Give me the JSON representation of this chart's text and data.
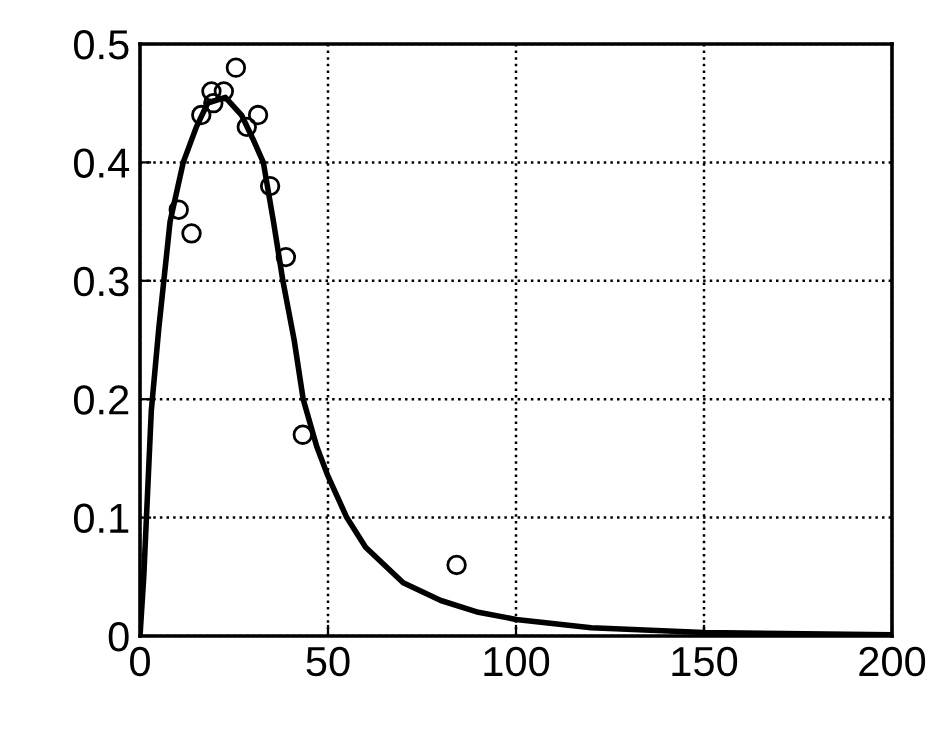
{
  "chart_data": {
    "type": "scatter",
    "series": [
      {
        "color": "#000000",
        "marker": "circle",
        "x": [
          10.3,
          13.7,
          16.3,
          19,
          19.5,
          22.3,
          25.5,
          28.4,
          31.4,
          34.6,
          38.8,
          43.3,
          84.2
        ],
        "values": [
          0.36,
          0.34,
          0.44,
          0.46,
          0.45,
          0.46,
          0.48,
          0.43,
          0.44,
          0.38,
          0.32,
          0.17,
          0.06
        ]
      },
      {
        "type": "line",
        "color": "#000000",
        "line_style": "solid",
        "x": [
          0,
          1,
          2,
          3,
          5,
          8,
          11.5,
          15,
          18,
          22.7,
          27,
          30,
          32.8,
          35.5,
          38,
          41,
          43.4,
          47,
          50,
          55,
          60,
          70,
          80,
          90,
          100,
          120,
          150,
          200
        ],
        "values": [
          0,
          0.05,
          0.12,
          0.19,
          0.26,
          0.35,
          0.4,
          0.43,
          0.45,
          0.455,
          0.44,
          0.42,
          0.4,
          0.35,
          0.3,
          0.25,
          0.2,
          0.16,
          0.135,
          0.1,
          0.075,
          0.045,
          0.03,
          0.02,
          0.014,
          0.007,
          0.003,
          0.001
        ]
      }
    ],
    "xlim": [
      0,
      200
    ],
    "xticks": [
      0,
      50,
      100,
      150,
      200
    ],
    "ylim": [
      0,
      0.5
    ],
    "yticks": [
      0,
      0.1,
      0.2,
      0.3,
      0.4,
      0.5
    ],
    "grid": true
  }
}
